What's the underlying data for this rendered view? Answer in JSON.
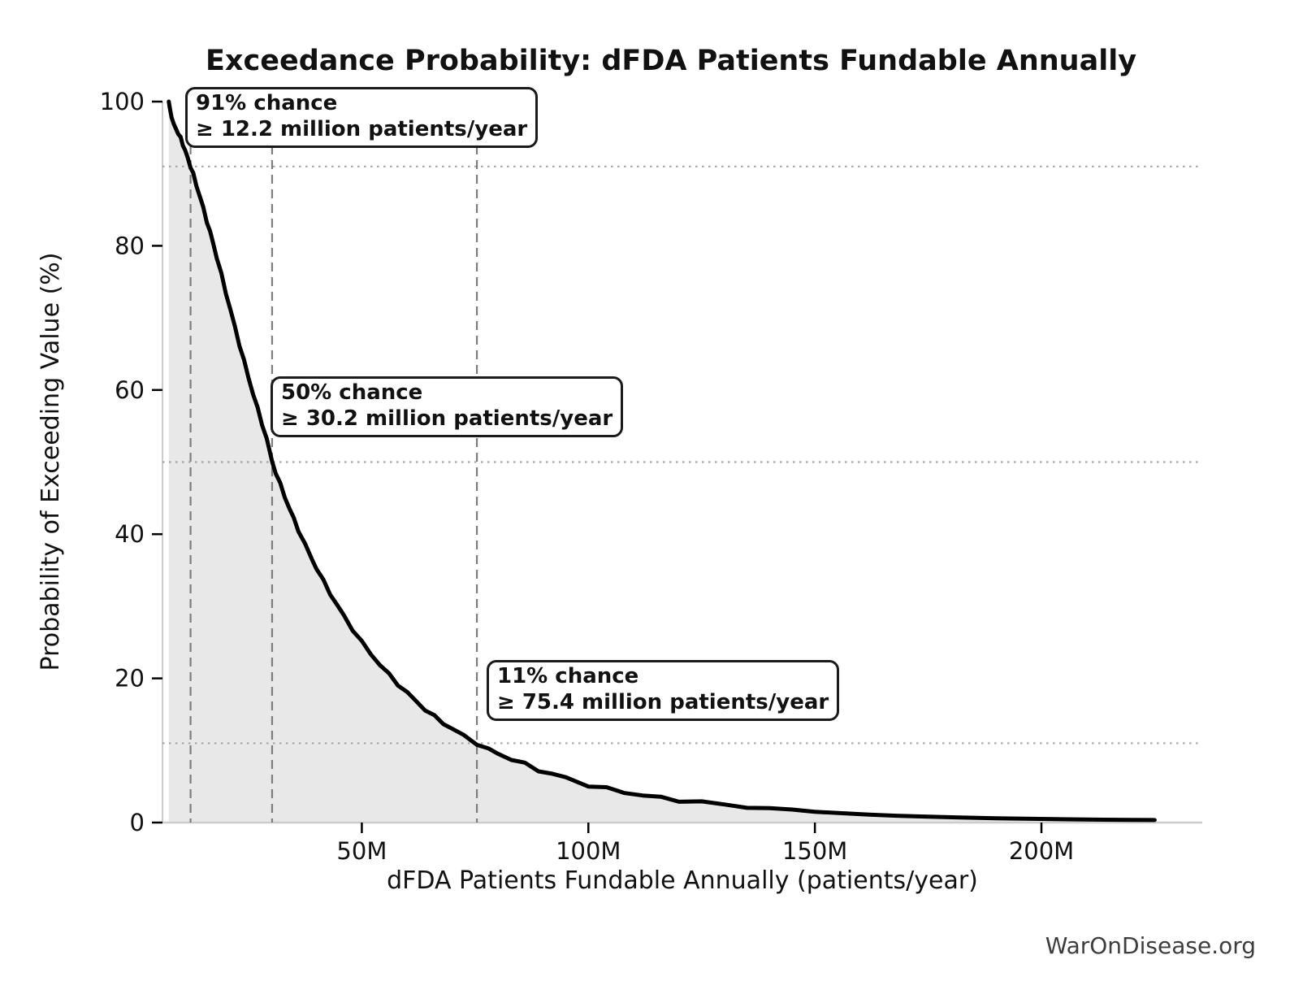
{
  "watermark": "WarOnDisease.org",
  "colors": {
    "curve": "#000000",
    "area_fill": "#e8e8e8",
    "dashed_line": "#7d7d7d",
    "dotted_line": "#a6a6a6",
    "spine": "#cccccc",
    "tick": "#000000",
    "watermark": "#3d3d3d",
    "background": "#ffffff"
  },
  "chart_data": {
    "type": "area",
    "title": "Exceedance Probability: dFDA Patients Fundable Annually",
    "xlabel": "dFDA Patients Fundable Annually (patients/year)",
    "ylabel": "Probability of Exceeding Value (%)",
    "x_unit": "millions of patients per year",
    "xlim": [
      6,
      235.5
    ],
    "ylim": [
      0,
      100
    ],
    "grid": "reference lines only (dotted horizontal at annotated probabilities, dashed vertical at annotated values)",
    "legend": "none",
    "x_ticks": [
      {
        "value": 50,
        "label": "50M"
      },
      {
        "value": 100,
        "label": "100M"
      },
      {
        "value": 150,
        "label": "150M"
      },
      {
        "value": 200,
        "label": "200M"
      }
    ],
    "y_ticks": [
      {
        "value": 0,
        "label": "0"
      },
      {
        "value": 20,
        "label": "20"
      },
      {
        "value": 40,
        "label": "40"
      },
      {
        "value": 60,
        "label": "60"
      },
      {
        "value": 80,
        "label": "80"
      },
      {
        "value": 100,
        "label": "100"
      }
    ],
    "series": [
      {
        "name": "Exceedance probability",
        "x_unit": "M patients/year",
        "y_unit": "%",
        "points": [
          [
            7.4,
            100
          ],
          [
            7.6,
            99.2
          ],
          [
            8,
            97.8
          ],
          [
            8.5,
            96.9
          ],
          [
            9,
            96.2
          ],
          [
            9.5,
            95.6
          ],
          [
            10,
            94.9
          ],
          [
            10.5,
            94.1
          ],
          [
            11,
            93.2
          ],
          [
            11.6,
            92.1
          ],
          [
            12.2,
            91
          ],
          [
            12.8,
            89.9
          ],
          [
            13.5,
            88.4
          ],
          [
            14.2,
            87
          ],
          [
            15,
            85.2
          ],
          [
            15.8,
            83.4
          ],
          [
            16.5,
            81.9
          ],
          [
            17.2,
            80.3
          ],
          [
            18,
            78.4
          ],
          [
            19,
            76
          ],
          [
            20,
            73.5
          ],
          [
            21,
            71.1
          ],
          [
            22,
            68.7
          ],
          [
            23,
            66.3
          ],
          [
            24,
            64
          ],
          [
            25,
            61.7
          ],
          [
            26,
            59.5
          ],
          [
            27,
            57.4
          ],
          [
            28,
            55.3
          ],
          [
            29,
            53.2
          ],
          [
            30.2,
            50
          ],
          [
            31,
            48.6
          ],
          [
            32,
            46.9
          ],
          [
            33,
            45.2
          ],
          [
            34,
            43.6
          ],
          [
            35,
            42.1
          ],
          [
            36,
            40.6
          ],
          [
            37.5,
            38.5
          ],
          [
            39,
            36.5
          ],
          [
            40,
            35.3
          ],
          [
            41.5,
            33.5
          ],
          [
            43,
            31.8
          ],
          [
            44.5,
            30.2
          ],
          [
            46,
            28.7
          ],
          [
            48,
            26.8
          ],
          [
            50,
            25
          ],
          [
            52,
            23.4
          ],
          [
            54,
            21.9
          ],
          [
            56,
            20.5
          ],
          [
            58,
            19.2
          ],
          [
            60,
            18
          ],
          [
            62,
            16.8
          ],
          [
            64,
            15.7
          ],
          [
            66,
            14.7
          ],
          [
            68,
            13.8
          ],
          [
            70,
            13
          ],
          [
            72.5,
            12
          ],
          [
            75.4,
            11
          ],
          [
            78,
            10.1
          ],
          [
            80,
            9.6
          ],
          [
            83,
            8.8
          ],
          [
            86,
            8.1
          ],
          [
            89,
            7.3
          ],
          [
            92,
            6.7
          ],
          [
            95,
            6.2
          ],
          [
            100,
            5.2
          ],
          [
            104,
            4.7
          ],
          [
            108,
            4.2
          ],
          [
            112,
            3.8
          ],
          [
            116,
            3.4
          ],
          [
            120,
            3.1
          ],
          [
            125,
            2.8
          ],
          [
            130,
            2.5
          ],
          [
            135,
            2.2
          ],
          [
            140,
            2
          ],
          [
            145,
            1.8
          ],
          [
            150,
            1.5
          ],
          [
            156,
            1.3
          ],
          [
            162,
            1.1
          ],
          [
            168,
            0.95
          ],
          [
            175,
            0.82
          ],
          [
            182,
            0.7
          ],
          [
            190,
            0.6
          ],
          [
            198,
            0.52
          ],
          [
            206,
            0.45
          ],
          [
            214,
            0.4
          ],
          [
            220,
            0.37
          ],
          [
            225,
            0.35
          ]
        ]
      }
    ],
    "annotations": [
      {
        "line1": "91% chance",
        "line2": "≥ 12.2 million patients/year",
        "probability_pct": 91,
        "value_millions": 12.2
      },
      {
        "line1": "50% chance",
        "line2": "≥ 30.2 million patients/year",
        "probability_pct": 50,
        "value_millions": 30.2
      },
      {
        "line1": "11% chance",
        "line2": "≥ 75.4 million patients/year",
        "probability_pct": 11,
        "value_millions": 75.4
      }
    ]
  }
}
